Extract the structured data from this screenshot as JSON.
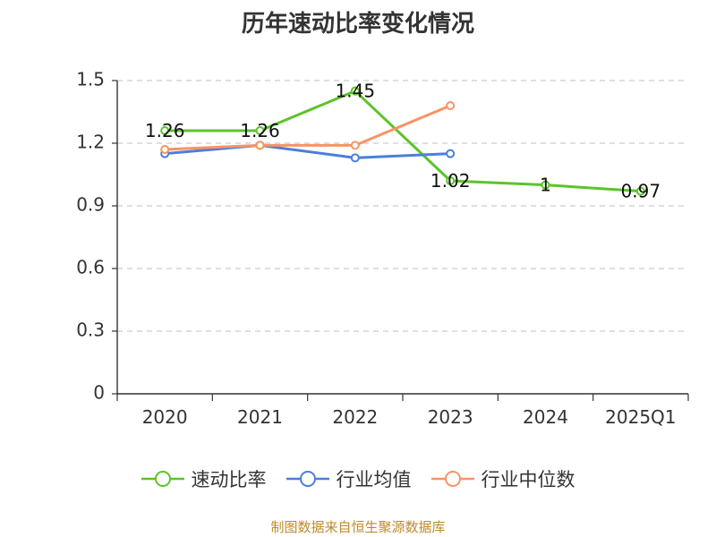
{
  "title": "历年速动比率变化情况",
  "source_note": "制图数据来自恒生聚源数据库",
  "chart_data": {
    "type": "line",
    "title": "历年速动比率变化情况",
    "categories": [
      "2020",
      "2021",
      "2022",
      "2023",
      "2024",
      "2025Q1"
    ],
    "y_ticks": [
      "0",
      "0.3",
      "0.6",
      "0.9",
      "1.2",
      "1.5"
    ],
    "ylim": [
      0,
      1.5
    ],
    "grid": true,
    "legend_position": "bottom",
    "series": [
      {
        "name": "速动比率",
        "color": "#5bc42b",
        "values": [
          1.26,
          1.26,
          1.45,
          1.02,
          1,
          0.97
        ],
        "labels": [
          "1.26",
          "1.26",
          "1.45",
          "1.02",
          "1",
          "0.97"
        ],
        "show_labels": true
      },
      {
        "name": "行业均值",
        "color": "#4a7fdc",
        "values": [
          1.15,
          1.19,
          1.13,
          1.15,
          null,
          null
        ],
        "show_labels": false
      },
      {
        "name": "行业中位数",
        "color": "#f79464",
        "values": [
          1.17,
          1.19,
          1.19,
          1.38,
          null,
          null
        ],
        "show_labels": false
      }
    ]
  }
}
